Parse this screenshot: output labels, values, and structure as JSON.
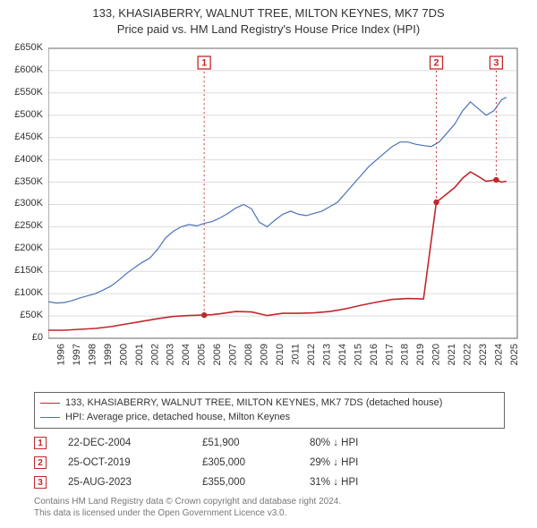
{
  "title_line1": "133, KHASIABERRY, WALNUT TREE, MILTON KEYNES, MK7 7DS",
  "title_line2": "Price paid vs. HM Land Registry's House Price Index (HPI)",
  "chart": {
    "type": "line",
    "background_color": "#ffffff",
    "grid_color": "#dcdcdc",
    "border_color": "#666666",
    "x_min": 1995,
    "x_max": 2025,
    "x_ticks": [
      1995,
      1996,
      1997,
      1998,
      1999,
      2000,
      2001,
      2002,
      2003,
      2004,
      2005,
      2006,
      2007,
      2008,
      2009,
      2010,
      2011,
      2012,
      2013,
      2014,
      2015,
      2016,
      2017,
      2018,
      2019,
      2020,
      2021,
      2022,
      2023,
      2024,
      2025
    ],
    "y_min": 0,
    "y_max": 650000,
    "y_tick_step": 50000,
    "y_tick_labels": [
      "£0",
      "£50K",
      "£100K",
      "£150K",
      "£200K",
      "£250K",
      "£300K",
      "£350K",
      "£400K",
      "£450K",
      "£500K",
      "£550K",
      "£600K",
      "£650K"
    ],
    "tick_fontsize": 11,
    "series": [
      {
        "name": "HPI: Average price, detached house, Milton Keynes",
        "color": "#4a72b8",
        "line_width": 1.2,
        "points": [
          [
            1995.0,
            82000
          ],
          [
            1995.5,
            79000
          ],
          [
            1996.0,
            80000
          ],
          [
            1996.5,
            84000
          ],
          [
            1997.0,
            90000
          ],
          [
            1997.5,
            95000
          ],
          [
            1998.0,
            100000
          ],
          [
            1998.5,
            108000
          ],
          [
            1999.0,
            117000
          ],
          [
            1999.5,
            130000
          ],
          [
            2000.0,
            145000
          ],
          [
            2000.5,
            158000
          ],
          [
            2001.0,
            170000
          ],
          [
            2001.5,
            180000
          ],
          [
            2002.0,
            200000
          ],
          [
            2002.5,
            225000
          ],
          [
            2003.0,
            240000
          ],
          [
            2003.5,
            250000
          ],
          [
            2004.0,
            255000
          ],
          [
            2004.5,
            252000
          ],
          [
            2005.0,
            258000
          ],
          [
            2005.5,
            262000
          ],
          [
            2006.0,
            270000
          ],
          [
            2006.5,
            280000
          ],
          [
            2007.0,
            292000
          ],
          [
            2007.5,
            300000
          ],
          [
            2008.0,
            290000
          ],
          [
            2008.5,
            260000
          ],
          [
            2009.0,
            250000
          ],
          [
            2009.5,
            265000
          ],
          [
            2010.0,
            278000
          ],
          [
            2010.5,
            285000
          ],
          [
            2011.0,
            278000
          ],
          [
            2011.5,
            275000
          ],
          [
            2012.0,
            280000
          ],
          [
            2012.5,
            285000
          ],
          [
            2013.0,
            295000
          ],
          [
            2013.5,
            305000
          ],
          [
            2014.0,
            325000
          ],
          [
            2014.5,
            345000
          ],
          [
            2015.0,
            365000
          ],
          [
            2015.5,
            385000
          ],
          [
            2016.0,
            400000
          ],
          [
            2016.5,
            415000
          ],
          [
            2017.0,
            430000
          ],
          [
            2017.5,
            440000
          ],
          [
            2018.0,
            440000
          ],
          [
            2018.5,
            435000
          ],
          [
            2019.0,
            432000
          ],
          [
            2019.5,
            430000
          ],
          [
            2020.0,
            440000
          ],
          [
            2020.5,
            460000
          ],
          [
            2021.0,
            480000
          ],
          [
            2021.5,
            510000
          ],
          [
            2022.0,
            530000
          ],
          [
            2022.5,
            515000
          ],
          [
            2023.0,
            500000
          ],
          [
            2023.5,
            510000
          ],
          [
            2024.0,
            535000
          ],
          [
            2024.3,
            540000
          ]
        ]
      },
      {
        "name": "133, KHASIABERRY, WALNUT TREE, MILTON KEYNES, MK7 7DS (detached house)",
        "color": "#c1272d",
        "line_width": 1.6,
        "points": [
          [
            1995.0,
            18000
          ],
          [
            1996.0,
            18000
          ],
          [
            1997.0,
            20000
          ],
          [
            1998.0,
            22000
          ],
          [
            1999.0,
            26000
          ],
          [
            2000.0,
            32000
          ],
          [
            2001.0,
            38000
          ],
          [
            2002.0,
            44000
          ],
          [
            2003.0,
            49000
          ],
          [
            2004.0,
            51000
          ],
          [
            2004.97,
            51900
          ],
          [
            2005.5,
            53000
          ],
          [
            2006.0,
            55000
          ],
          [
            2007.0,
            60000
          ],
          [
            2008.0,
            59000
          ],
          [
            2009.0,
            51000
          ],
          [
            2010.0,
            56000
          ],
          [
            2011.0,
            56000
          ],
          [
            2012.0,
            57000
          ],
          [
            2013.0,
            60000
          ],
          [
            2014.0,
            66000
          ],
          [
            2015.0,
            74000
          ],
          [
            2016.0,
            81000
          ],
          [
            2017.0,
            87000
          ],
          [
            2018.0,
            89000
          ],
          [
            2019.0,
            88000
          ],
          [
            2019.82,
            305000
          ],
          [
            2020.0,
            310000
          ],
          [
            2020.5,
            324000
          ],
          [
            2021.0,
            338000
          ],
          [
            2021.5,
            359000
          ],
          [
            2022.0,
            373000
          ],
          [
            2022.5,
            363000
          ],
          [
            2023.0,
            352000
          ],
          [
            2023.65,
            355000
          ],
          [
            2024.0,
            350000
          ],
          [
            2024.3,
            352000
          ]
        ],
        "sale_markers": [
          {
            "n": 1,
            "x": 2004.97,
            "y": 51900
          },
          {
            "n": 2,
            "x": 2019.82,
            "y": 305000
          },
          {
            "n": 3,
            "x": 2023.65,
            "y": 355000
          }
        ]
      }
    ],
    "marker_top_offset": 16
  },
  "legend": {
    "border_color": "#666666",
    "items": [
      {
        "color": "#c1272d",
        "width": 1.6,
        "label": "133, KHASIABERRY, WALNUT TREE, MILTON KEYNES, MK7 7DS (detached house)"
      },
      {
        "color": "#4a72b8",
        "width": 1.2,
        "label": "HPI: Average price, detached house, Milton Keynes"
      }
    ]
  },
  "sales": [
    {
      "n": "1",
      "date": "22-DEC-2004",
      "price": "£51,900",
      "diff": "80% ↓ HPI"
    },
    {
      "n": "2",
      "date": "25-OCT-2019",
      "price": "£305,000",
      "diff": "29% ↓ HPI"
    },
    {
      "n": "3",
      "date": "25-AUG-2023",
      "price": "£355,000",
      "diff": "31% ↓ HPI"
    }
  ],
  "footer_line1": "Contains HM Land Registry data © Crown copyright and database right 2024.",
  "footer_line2": "This data is licensed under the Open Government Licence v3.0."
}
